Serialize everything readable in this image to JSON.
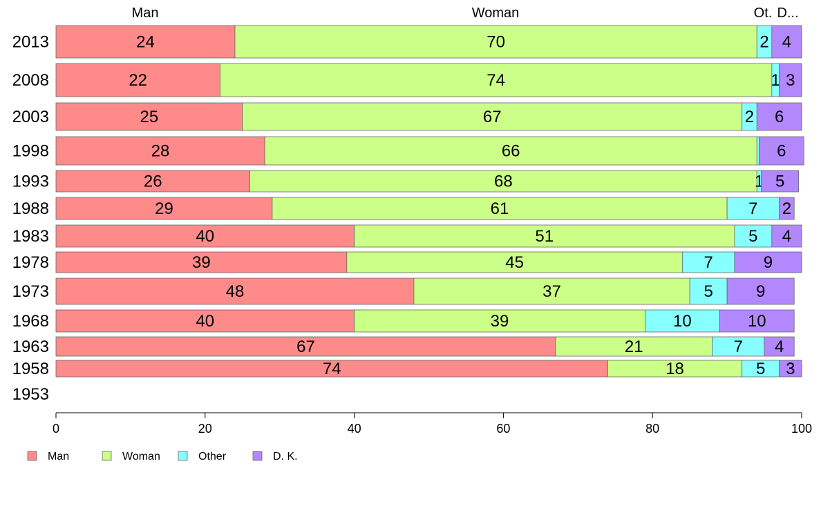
{
  "chart_data": {
    "type": "bar",
    "orientation": "horizontal",
    "stacked": true,
    "title": "",
    "xlabel": "",
    "ylabel": "",
    "xlim": [
      0,
      100
    ],
    "xticks": [
      "0",
      "20",
      "40",
      "60",
      "80",
      "100"
    ],
    "grid": false,
    "legend_position": "bottom-left",
    "column_headers": [
      "Man",
      "Woman",
      "Ot.",
      "D..."
    ],
    "categories": [
      "2013",
      "2008",
      "2003",
      "1998",
      "1993",
      "1988",
      "1983",
      "1978",
      "1973",
      "1968",
      "1963",
      "1958",
      "1953"
    ],
    "series": [
      {
        "name": "Man",
        "color": "#ff8a8a",
        "values": [
          24,
          22,
          25,
          28,
          26,
          29,
          40,
          39,
          48,
          40,
          67,
          74,
          null
        ]
      },
      {
        "name": "Woman",
        "color": "#ccff88",
        "values": [
          70,
          74,
          67,
          66,
          68,
          61,
          51,
          45,
          37,
          39,
          21,
          18,
          null
        ]
      },
      {
        "name": "Other",
        "color": "#88ffff",
        "values": [
          2,
          1,
          2,
          0.3,
          0.6,
          7,
          5,
          7,
          5,
          10,
          7,
          5,
          null
        ]
      },
      {
        "name": "D. K.",
        "color": "#b388ff",
        "values": [
          4,
          3,
          6,
          6,
          5,
          2,
          4,
          9,
          9,
          10,
          4,
          3,
          null
        ]
      }
    ],
    "displayed_labels": [
      [
        "24",
        "70",
        "2",
        "4"
      ],
      [
        "22",
        "74",
        "1",
        "3"
      ],
      [
        "25",
        "67",
        "2",
        "6"
      ],
      [
        "28",
        "66",
        "",
        "6"
      ],
      [
        "26",
        "68",
        "1",
        "5"
      ],
      [
        "29",
        "61",
        "7",
        "2"
      ],
      [
        "40",
        "51",
        "5",
        "4"
      ],
      [
        "39",
        "45",
        "7",
        "9"
      ],
      [
        "48",
        "37",
        "5",
        "9"
      ],
      [
        "40",
        "39",
        "10",
        "10"
      ],
      [
        "67",
        "21",
        "7",
        "4"
      ],
      [
        "74",
        "18",
        "5",
        "3"
      ],
      [
        "",
        "",
        "",
        ""
      ]
    ],
    "legend": [
      "Man",
      "Woman",
      "Other",
      "D. K."
    ]
  }
}
